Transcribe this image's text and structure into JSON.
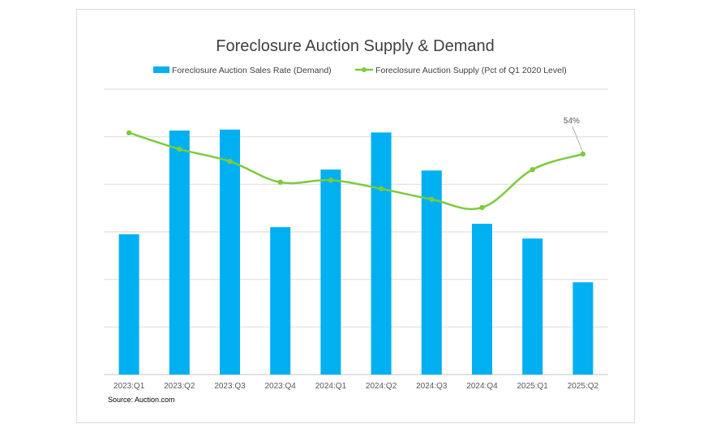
{
  "chart_data": {
    "type": "bar",
    "title": "Foreclosure Auction Supply & Demand",
    "categories": [
      "2023:Q1",
      "2023:Q2",
      "2023:Q3",
      "2023:Q4",
      "2024:Q1",
      "2024:Q2",
      "2024:Q3",
      "2024:Q4",
      "2025:Q1",
      "2025:Q2"
    ],
    "series": [
      {
        "name": "Foreclosure Auction Sales Rate (Demand)",
        "type": "bar",
        "color": "#00b0f0",
        "axis": "primary",
        "values": [
          2.95,
          5.13,
          5.15,
          3.1,
          4.31,
          5.09,
          4.29,
          3.17,
          2.86,
          1.94
        ]
      },
      {
        "name": "Foreclosure Auction Supply (Pct of Q1 2020 Level)",
        "type": "line",
        "smooth": true,
        "color": "#7dcb3c",
        "axis": "secondary",
        "unit": "%",
        "values": [
          59.2,
          55.2,
          52.2,
          47.1,
          47.6,
          45.5,
          42.9,
          40.9,
          50.2,
          54.0
        ]
      }
    ],
    "data_labels": [
      {
        "series": 1,
        "index": 9,
        "text": "54%"
      }
    ],
    "xlabel": "",
    "ylabel": "",
    "ylim": [
      0,
      6
    ],
    "y2lim": [
      0,
      70
    ],
    "y_tick_labels_visible": false,
    "grid": true,
    "legend": "top-center",
    "source": "Source: Auction.com"
  }
}
